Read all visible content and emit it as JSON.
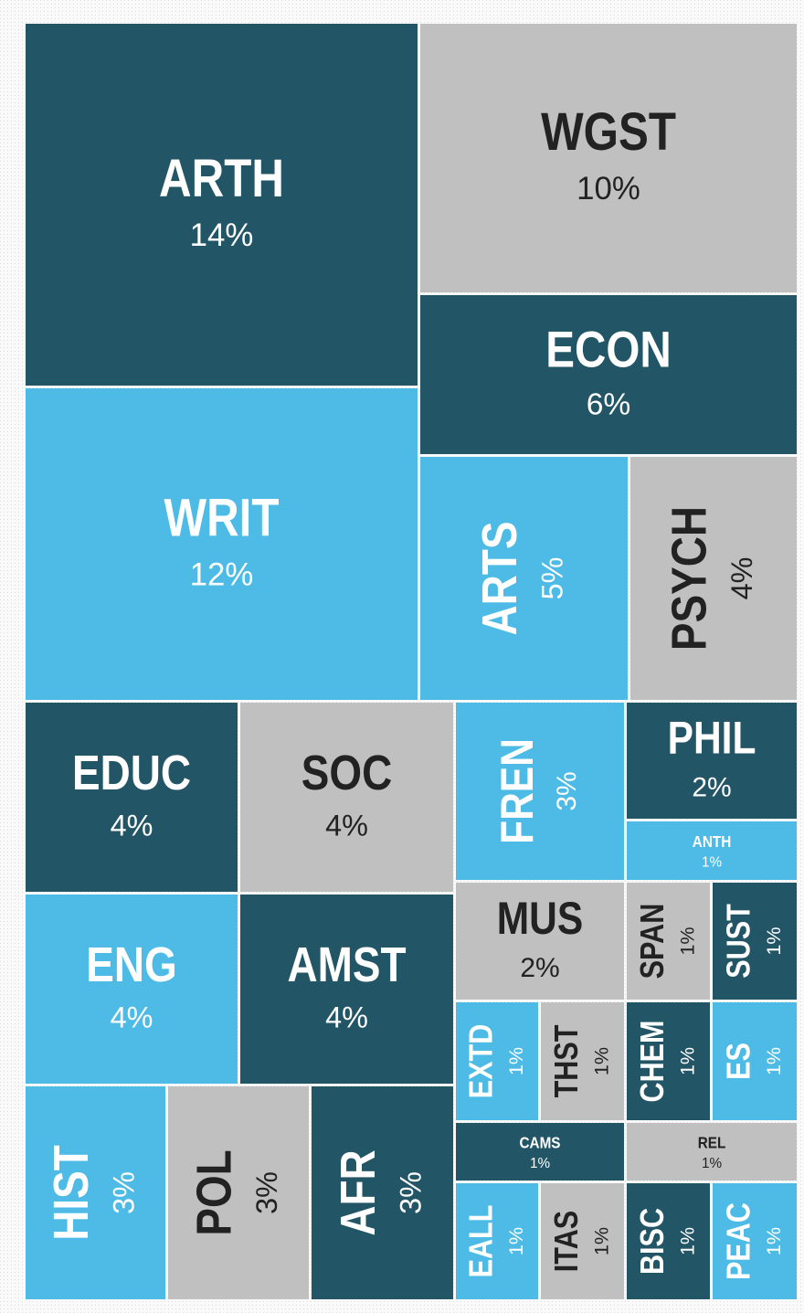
{
  "chart_data": {
    "type": "treemap",
    "categories": [
      "ARTH",
      "WGST",
      "ECON",
      "WRIT",
      "ARTS",
      "PSYCH",
      "EDUC",
      "SOC",
      "FREN",
      "PHIL",
      "ANTH",
      "ENG",
      "AMST",
      "MUS",
      "SPAN",
      "SUST",
      "EXTD",
      "THST",
      "CHEM",
      "ES",
      "HIST",
      "POL",
      "AFR",
      "CAMS",
      "REL",
      "EALL",
      "ITAS",
      "BISC",
      "PEAC"
    ],
    "values": [
      14,
      10,
      6,
      12,
      5,
      4,
      4,
      4,
      3,
      2,
      1,
      4,
      4,
      2,
      1,
      1,
      1,
      1,
      1,
      1,
      3,
      3,
      3,
      1,
      1,
      1,
      1,
      1,
      1
    ],
    "value_labels": [
      "14%",
      "10%",
      "6%",
      "12%",
      "5%",
      "4%",
      "4%",
      "4%",
      "3%",
      "2%",
      "1%",
      "4%",
      "4%",
      "2%",
      "1%",
      "1%",
      "1%",
      "1%",
      "1%",
      "1%",
      "3%",
      "3%",
      "3%",
      "1%",
      "1%",
      "1%",
      "1%",
      "1%",
      "1%"
    ],
    "colors": [
      "#225566",
      "#c0c0c0",
      "#225566",
      "#4dbbe6",
      "#4dbbe6",
      "#c0c0c0",
      "#225566",
      "#c0c0c0",
      "#4dbbe6",
      "#225566",
      "#4dbbe6",
      "#4dbbe6",
      "#225566",
      "#c0c0c0",
      "#c0c0c0",
      "#225566",
      "#4dbbe6",
      "#c0c0c0",
      "#225566",
      "#4dbbe6",
      "#4dbbe6",
      "#c0c0c0",
      "#225566",
      "#225566",
      "#c0c0c0",
      "#4dbbe6",
      "#c0c0c0",
      "#225566",
      "#4dbbe6"
    ]
  }
}
